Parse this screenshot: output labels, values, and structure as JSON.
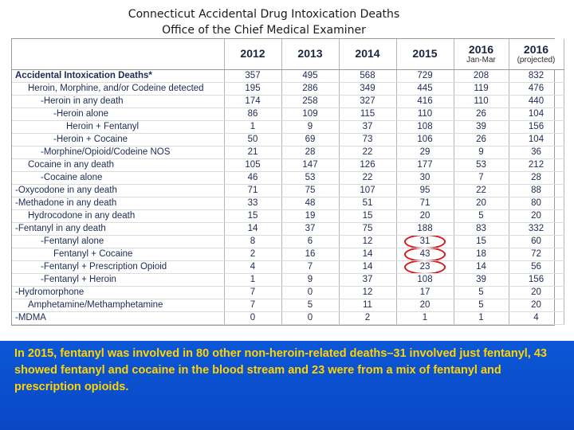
{
  "title": {
    "line1": "Connecticut Accidental Drug Intoxication Deaths",
    "line2": "Office of the Chief Medical Examiner"
  },
  "table": {
    "headers": [
      {
        "year": "2012",
        "sub": ""
      },
      {
        "year": "2013",
        "sub": ""
      },
      {
        "year": "2014",
        "sub": ""
      },
      {
        "year": "2015",
        "sub": ""
      },
      {
        "year": "2016",
        "sub": "Jan-Mar"
      },
      {
        "year": "2016",
        "sub": "(projected)"
      }
    ],
    "rows": [
      {
        "label": "Accidental Intoxication Deaths*",
        "values": [
          "357",
          "495",
          "568",
          "729",
          "208",
          "832"
        ]
      },
      {
        "label": "Heroin, Morphine, and/or Codeine detected",
        "values": [
          "195",
          "286",
          "349",
          "445",
          "119",
          "476"
        ]
      },
      {
        "label": "-Heroin in any death",
        "values": [
          "174",
          "258",
          "327",
          "416",
          "110",
          "440"
        ]
      },
      {
        "label": "-Heroin alone",
        "values": [
          "86",
          "109",
          "115",
          "110",
          "26",
          "104"
        ]
      },
      {
        "label": "Heroin + Fentanyl",
        "values": [
          "1",
          "9",
          "37",
          "108",
          "39",
          "156"
        ]
      },
      {
        "label": "-Heroin + Cocaine",
        "values": [
          "50",
          "69",
          "73",
          "106",
          "26",
          "104"
        ]
      },
      {
        "label": "-Morphine/Opioid/Codeine NOS",
        "values": [
          "21",
          "28",
          "22",
          "29",
          "9",
          "36"
        ]
      },
      {
        "label": "Cocaine in any death",
        "values": [
          "105",
          "147",
          "126",
          "177",
          "53",
          "212"
        ]
      },
      {
        "label": "-Cocaine alone",
        "values": [
          "46",
          "53",
          "22",
          "30",
          "7",
          "28"
        ]
      },
      {
        "label": "-Oxycodone in any death",
        "values": [
          "71",
          "75",
          "107",
          "95",
          "22",
          "88"
        ]
      },
      {
        "label": "-Methadone in any death",
        "values": [
          "33",
          "48",
          "51",
          "71",
          "20",
          "80"
        ]
      },
      {
        "label": "Hydrocodone in any death",
        "values": [
          "15",
          "19",
          "15",
          "20",
          "5",
          "20"
        ]
      },
      {
        "label": "-Fentanyl in any death",
        "values": [
          "14",
          "37",
          "75",
          "188",
          "83",
          "332"
        ]
      },
      {
        "label": "-Fentanyl alone",
        "values": [
          "8",
          "6",
          "12",
          "31",
          "15",
          "60"
        ]
      },
      {
        "label": "Fentanyl + Cocaine",
        "values": [
          "2",
          "16",
          "14",
          "43",
          "18",
          "72"
        ]
      },
      {
        "label": "-Fentanyl + Prescription Opioid",
        "values": [
          "4",
          "7",
          "14",
          "23",
          "14",
          "56"
        ]
      },
      {
        "label": "-Fentanyl + Heroin",
        "values": [
          "1",
          "9",
          "37",
          "108",
          "39",
          "156"
        ]
      },
      {
        "label": "-Hydromorphone",
        "values": [
          "7",
          "0",
          "12",
          "17",
          "5",
          "20"
        ]
      },
      {
        "label": "Amphetamine/Methamphetamine",
        "values": [
          "7",
          "5",
          "11",
          "20",
          "5",
          "20"
        ]
      },
      {
        "label": "-MDMA",
        "values": [
          "0",
          "0",
          "2",
          "1",
          "1",
          "4"
        ]
      }
    ]
  },
  "caption": "In 2015, fentanyl was involved in 80 other non-heroin-related deaths–31 involved just fentanyl, 43 showed fentanyl and cocaine in the blood stream and 23 were from a mix of fentanyl and prescription opioids.",
  "colors": {
    "panel": "#0b57d6",
    "caption_text": "#ffd400",
    "highlight_ring": "#d8151a",
    "table_text": "#1c2a55"
  }
}
